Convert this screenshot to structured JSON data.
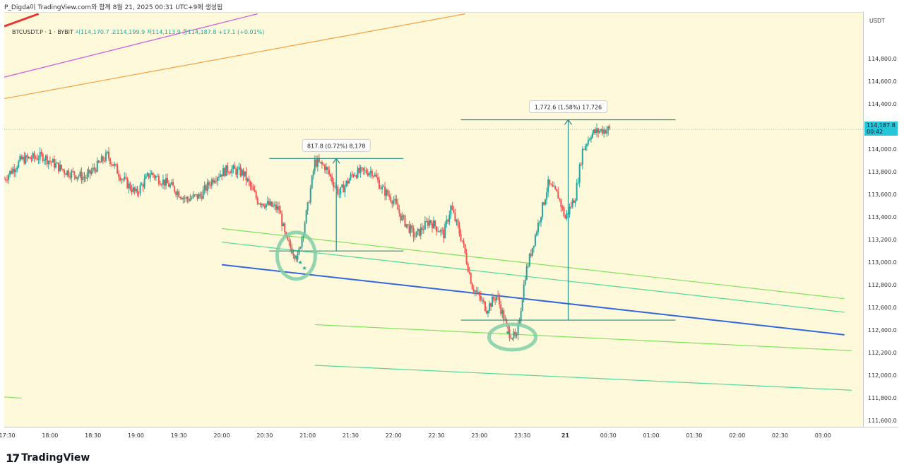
{
  "header": {
    "text": "P_Digda이 TradingView.com와 함께 8월 21, 2025 00:31 UTC+9에 생성됨"
  },
  "legend": {
    "symbol": "BTCUSDT.P · 1 · BYBIT",
    "open": "시114,170.7",
    "high": "고114,199.9",
    "low": "저114,113.9",
    "close": "종114,187.8",
    "change": "+17.1 (+0.01%)"
  },
  "price_scale": {
    "currency": "USDT",
    "last_price": "114,187.8",
    "countdown": "00:42"
  },
  "footer": {
    "logo_mark": "17",
    "logo_text": "TradingView"
  },
  "colors": {
    "background": "#fff9dc",
    "up_candle": "#26a69a",
    "down_candle": "#ef5350",
    "blue_line": "#3366dd",
    "green_line": "#7ee35a",
    "teal_line": "#4dd99a",
    "orange_line": "#f7a03c",
    "purple_line": "#cc55dd",
    "red_line": "#e53935",
    "measure": "#268a80",
    "circle_marker": "#7fcfa6"
  },
  "chart_data": {
    "type": "candlestick",
    "title": "BTCUSDT.P · 1 · BYBIT",
    "ylim": [
      111550,
      115220
    ],
    "y_ticks": [
      "111,600.0",
      "111,800.0",
      "112,000.0",
      "112,200.0",
      "112,400.0",
      "112,600.0",
      "112,800.0",
      "113,000.0",
      "113,200.0",
      "113,400.0",
      "113,600.0",
      "113,800.0",
      "114,000.0",
      "114,200.0",
      "114,400.0",
      "114,600.0",
      "114,800.0"
    ],
    "x_ticks": [
      "17:30",
      "18:00",
      "18:30",
      "19:00",
      "19:30",
      "20:00",
      "20:30",
      "21:00",
      "21:30",
      "22:00",
      "22:30",
      "23:00",
      "23:30",
      "21",
      "00:30",
      "01:00",
      "01:30",
      "02:00",
      "02:30",
      "03:00"
    ],
    "x_time_range": [
      "17:28",
      "03:28"
    ],
    "price_path": [
      {
        "t": "17:28",
        "p": 113750
      },
      {
        "t": "17:40",
        "p": 113920
      },
      {
        "t": "17:55",
        "p": 113950
      },
      {
        "t": "18:10",
        "p": 113820
      },
      {
        "t": "18:25",
        "p": 113760
      },
      {
        "t": "18:40",
        "p": 113960
      },
      {
        "t": "18:50",
        "p": 113760
      },
      {
        "t": "19:00",
        "p": 113620
      },
      {
        "t": "19:10",
        "p": 113800
      },
      {
        "t": "19:25",
        "p": 113680
      },
      {
        "t": "19:35",
        "p": 113570
      },
      {
        "t": "19:45",
        "p": 113600
      },
      {
        "t": "19:55",
        "p": 113770
      },
      {
        "t": "20:05",
        "p": 113840
      },
      {
        "t": "20:15",
        "p": 113800
      },
      {
        "t": "20:25",
        "p": 113560
      },
      {
        "t": "20:40",
        "p": 113480
      },
      {
        "t": "20:45",
        "p": 113200
      },
      {
        "t": "20:53",
        "p": 113050
      },
      {
        "t": "21:00",
        "p": 113500
      },
      {
        "t": "21:05",
        "p": 113900
      },
      {
        "t": "21:12",
        "p": 113860
      },
      {
        "t": "21:22",
        "p": 113620
      },
      {
        "t": "21:32",
        "p": 113800
      },
      {
        "t": "21:45",
        "p": 113820
      },
      {
        "t": "21:52",
        "p": 113660
      },
      {
        "t": "22:00",
        "p": 113560
      },
      {
        "t": "22:05",
        "p": 113420
      },
      {
        "t": "22:15",
        "p": 113240
      },
      {
        "t": "22:25",
        "p": 113380
      },
      {
        "t": "22:35",
        "p": 113260
      },
      {
        "t": "22:40",
        "p": 113500
      },
      {
        "t": "22:48",
        "p": 113200
      },
      {
        "t": "22:55",
        "p": 112800
      },
      {
        "t": "23:05",
        "p": 112600
      },
      {
        "t": "23:12",
        "p": 112720
      },
      {
        "t": "23:20",
        "p": 112400
      },
      {
        "t": "23:26",
        "p": 112330
      },
      {
        "t": "23:32",
        "p": 112900
      },
      {
        "t": "23:40",
        "p": 113300
      },
      {
        "t": "23:48",
        "p": 113700
      },
      {
        "t": "23:55",
        "p": 113600
      },
      {
        "t": "00:00",
        "p": 113400
      },
      {
        "t": "00:07",
        "p": 113600
      },
      {
        "t": "00:12",
        "p": 114000
      },
      {
        "t": "00:18",
        "p": 114150
      },
      {
        "t": "00:25",
        "p": 114180
      },
      {
        "t": "00:31",
        "p": 114187.8
      }
    ],
    "horizontal_price_line": 114187.8,
    "annotations": [
      {
        "label": "817.8 (0.72%) 8,178",
        "from": {
          "t": "21:20",
          "p": 113112
        },
        "to": {
          "t": "21:20",
          "p": 113930
        }
      },
      {
        "label": "1,772.6 (1.58%) 17,726",
        "from": {
          "t": "00:02",
          "p": 112500
        },
        "to": {
          "t": "00:02",
          "p": 114273
        }
      }
    ],
    "trend_lines": [
      {
        "color": "blue_line",
        "points": [
          [
            "20:00",
            112990
          ],
          [
            "03:15",
            112370
          ]
        ]
      },
      {
        "color": "green_line",
        "points": [
          [
            "20:00",
            113310
          ],
          [
            "03:15",
            112690
          ]
        ]
      },
      {
        "color": "teal_line",
        "points": [
          [
            "20:00",
            113190
          ],
          [
            "03:15",
            112570
          ]
        ]
      },
      {
        "color": "green_line",
        "points": [
          [
            "21:05",
            112460
          ],
          [
            "03:20",
            112230
          ]
        ]
      },
      {
        "color": "teal_line",
        "points": [
          [
            "21:05",
            112100
          ],
          [
            "03:20",
            111880
          ]
        ]
      },
      {
        "color": "orange_line",
        "points": [
          [
            "17:28",
            114460
          ],
          [
            "22:50",
            115210
          ]
        ]
      },
      {
        "color": "purple_line",
        "points": [
          [
            "17:28",
            114650
          ],
          [
            "20:25",
            115210
          ]
        ]
      },
      {
        "color": "red_line",
        "points": [
          [
            "17:28",
            115100
          ],
          [
            "17:52",
            115210
          ]
        ]
      },
      {
        "color": "green_line",
        "points": [
          [
            "17:28",
            111820
          ],
          [
            "17:40",
            111810
          ]
        ]
      }
    ],
    "markers": [
      {
        "shape": "circle",
        "t": "20:52",
        "p": 113070
      },
      {
        "shape": "circle",
        "t": "23:23",
        "p": 112350
      }
    ]
  }
}
